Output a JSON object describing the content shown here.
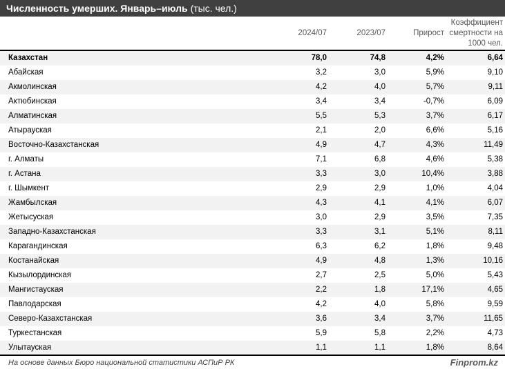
{
  "title": {
    "bold": "Численность умерших. Январь–июль",
    "unit": "(тыс. чел.)"
  },
  "columns": [
    "2024/07",
    "2023/07",
    "Прирост",
    "Коэффициент смертности на 1000 чел."
  ],
  "rows": [
    {
      "name": "Казахстан",
      "v2024": "78,0",
      "v2023": "74,8",
      "growth": "4,2%",
      "rate": "6,64"
    },
    {
      "name": "Абайская",
      "v2024": "3,2",
      "v2023": "3,0",
      "growth": "5,9%",
      "rate": "9,10"
    },
    {
      "name": "Акмолинская",
      "v2024": "4,2",
      "v2023": "4,0",
      "growth": "5,7%",
      "rate": "9,11"
    },
    {
      "name": "Актюбинская",
      "v2024": "3,4",
      "v2023": "3,4",
      "growth": "-0,7%",
      "rate": "6,09"
    },
    {
      "name": "Алматинская",
      "v2024": "5,5",
      "v2023": "5,3",
      "growth": "3,7%",
      "rate": "6,17"
    },
    {
      "name": "Атырауская",
      "v2024": "2,1",
      "v2023": "2,0",
      "growth": "6,6%",
      "rate": "5,16"
    },
    {
      "name": "Восточно-Казахстанская",
      "v2024": "4,9",
      "v2023": "4,7",
      "growth": "4,3%",
      "rate": "11,49"
    },
    {
      "name": "г. Алматы",
      "v2024": "7,1",
      "v2023": "6,8",
      "growth": "4,6%",
      "rate": "5,38"
    },
    {
      "name": "г. Астана",
      "v2024": "3,3",
      "v2023": "3,0",
      "growth": "10,4%",
      "rate": "3,88"
    },
    {
      "name": "г. Шымкент",
      "v2024": "2,9",
      "v2023": "2,9",
      "growth": "1,0%",
      "rate": "4,04"
    },
    {
      "name": "Жамбылская",
      "v2024": "4,3",
      "v2023": "4,1",
      "growth": "4,1%",
      "rate": "6,07"
    },
    {
      "name": "Жетысуская",
      "v2024": "3,0",
      "v2023": "2,9",
      "growth": "3,5%",
      "rate": "7,35"
    },
    {
      "name": "Западно-Казахстанская",
      "v2024": "3,3",
      "v2023": "3,1",
      "growth": "5,1%",
      "rate": "8,11"
    },
    {
      "name": "Карагандинская",
      "v2024": "6,3",
      "v2023": "6,2",
      "growth": "1,8%",
      "rate": "9,48"
    },
    {
      "name": "Костанайская",
      "v2024": "4,9",
      "v2023": "4,8",
      "growth": "1,3%",
      "rate": "10,16"
    },
    {
      "name": "Кызылординская",
      "v2024": "2,7",
      "v2023": "2,5",
      "growth": "5,0%",
      "rate": "5,43"
    },
    {
      "name": "Мангистауская",
      "v2024": "2,2",
      "v2023": "1,8",
      "growth": "17,1%",
      "rate": "4,65"
    },
    {
      "name": "Павлодарская",
      "v2024": "4,2",
      "v2023": "4,0",
      "growth": "5,8%",
      "rate": "9,59"
    },
    {
      "name": "Северо-Казахстанская",
      "v2024": "3,6",
      "v2023": "3,4",
      "growth": "3,7%",
      "rate": "11,65"
    },
    {
      "name": "Туркестанская",
      "v2024": "5,9",
      "v2023": "5,8",
      "growth": "2,2%",
      "rate": "4,73"
    },
    {
      "name": "Улытауская",
      "v2024": "1,1",
      "v2023": "1,1",
      "growth": "1,8%",
      "rate": "8,64"
    }
  ],
  "footer": {
    "source": "На основе данных Бюро национальной статистики АСПиР РК",
    "logo": "Finprom.kz"
  }
}
